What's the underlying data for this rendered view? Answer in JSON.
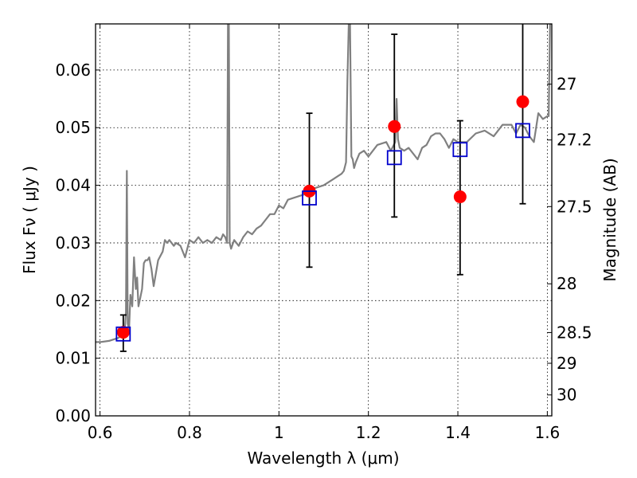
{
  "chart_data": {
    "type": "scatter",
    "xlabel": "Wavelength  λ (μm)",
    "ylabel": "Flux  Fν  ( μJy )",
    "y2label": "Magnitude (AB)",
    "xlim": [
      0.59,
      1.61
    ],
    "ylim": [
      0.0,
      0.068
    ],
    "grid": true,
    "x_ticks": [
      0.6,
      0.8,
      1.0,
      1.2,
      1.4,
      1.6
    ],
    "x_tick_labels": [
      "0.6",
      "0.8",
      "1",
      "1.2",
      "1.4",
      "1.6"
    ],
    "y_ticks": [
      0.0,
      0.01,
      0.02,
      0.03,
      0.04,
      0.05,
      0.06
    ],
    "y_tick_labels": [
      "0.00",
      "0.01",
      "0.02",
      "0.03",
      "0.04",
      "0.05",
      "0.06"
    ],
    "y2_ticks": [
      27,
      27.2,
      27.5,
      28,
      28.5,
      29,
      30
    ],
    "y2_tick_labels": [
      "27",
      "27.2",
      "27.5",
      "28",
      "28.5",
      "29",
      "30"
    ],
    "series": [
      {
        "kind": "line",
        "color": "#808080",
        "x": [
          0.59,
          0.6,
          0.62,
          0.64,
          0.65,
          0.655,
          0.658,
          0.66,
          0.662,
          0.665,
          0.668,
          0.672,
          0.676,
          0.68,
          0.683,
          0.686,
          0.69,
          0.694,
          0.698,
          0.702,
          0.706,
          0.71,
          0.715,
          0.72,
          0.73,
          0.74,
          0.745,
          0.75,
          0.755,
          0.76,
          0.765,
          0.77,
          0.78,
          0.79,
          0.8,
          0.81,
          0.82,
          0.83,
          0.84,
          0.85,
          0.86,
          0.87,
          0.875,
          0.88,
          0.884,
          0.886,
          0.888,
          0.89,
          0.893,
          0.9,
          0.91,
          0.92,
          0.93,
          0.94,
          0.95,
          0.96,
          0.97,
          0.98,
          0.99,
          1.0,
          1.01,
          1.02,
          1.04,
          1.06,
          1.08,
          1.1,
          1.12,
          1.13,
          1.14,
          1.145,
          1.15,
          1.153,
          1.156,
          1.159,
          1.162,
          1.165,
          1.168,
          1.172,
          1.18,
          1.19,
          1.2,
          1.21,
          1.22,
          1.24,
          1.25,
          1.26,
          1.263,
          1.266,
          1.27,
          1.28,
          1.29,
          1.3,
          1.31,
          1.32,
          1.33,
          1.34,
          1.35,
          1.36,
          1.37,
          1.38,
          1.39,
          1.4,
          1.42,
          1.44,
          1.46,
          1.48,
          1.5,
          1.52,
          1.53,
          1.54,
          1.55,
          1.56,
          1.57,
          1.58,
          1.59,
          1.6,
          1.603,
          1.606,
          1.61
        ],
        "y": [
          0.0128,
          0.0128,
          0.013,
          0.0135,
          0.014,
          0.0145,
          0.018,
          0.0425,
          0.016,
          0.015,
          0.021,
          0.019,
          0.0275,
          0.022,
          0.024,
          0.019,
          0.0205,
          0.022,
          0.0265,
          0.027,
          0.027,
          0.0275,
          0.0255,
          0.0225,
          0.027,
          0.0285,
          0.0305,
          0.03,
          0.0305,
          0.03,
          0.0295,
          0.03,
          0.0295,
          0.0275,
          0.0305,
          0.03,
          0.031,
          0.03,
          0.0305,
          0.03,
          0.031,
          0.0305,
          0.0315,
          0.031,
          0.03,
          0.068,
          0.068,
          0.03,
          0.029,
          0.0305,
          0.0295,
          0.031,
          0.032,
          0.0315,
          0.0325,
          0.033,
          0.034,
          0.035,
          0.035,
          0.0365,
          0.036,
          0.0375,
          0.038,
          0.0385,
          0.0395,
          0.04,
          0.041,
          0.0415,
          0.042,
          0.0425,
          0.044,
          0.058,
          0.068,
          0.068,
          0.045,
          0.0445,
          0.043,
          0.044,
          0.0455,
          0.046,
          0.045,
          0.046,
          0.047,
          0.0475,
          0.046,
          0.0475,
          0.055,
          0.048,
          0.0465,
          0.046,
          0.0465,
          0.0455,
          0.0445,
          0.0465,
          0.047,
          0.0485,
          0.049,
          0.049,
          0.048,
          0.0465,
          0.048,
          0.0475,
          0.0475,
          0.049,
          0.0495,
          0.0485,
          0.0505,
          0.0505,
          0.049,
          0.0505,
          0.05,
          0.0485,
          0.0475,
          0.0525,
          0.0515,
          0.052,
          0.052,
          0.068,
          0.068
        ]
      },
      {
        "kind": "points",
        "marker": "circle",
        "color": "#ff0000",
        "x": [
          0.652,
          1.068,
          1.258,
          1.405,
          1.545
        ],
        "y": [
          0.0145,
          0.039,
          0.0502,
          0.038,
          0.0545
        ]
      },
      {
        "kind": "points",
        "marker": "square",
        "color": "#0000cc",
        "x": [
          0.652,
          1.068,
          1.258,
          1.405,
          1.545
        ],
        "y": [
          0.0142,
          0.0378,
          0.0448,
          0.0462,
          0.0495
        ]
      },
      {
        "kind": "errorbars",
        "color": "#000000",
        "x": [
          0.652,
          1.068,
          1.258,
          1.405,
          1.545
        ],
        "y_low": [
          0.0112,
          0.0258,
          0.0345,
          0.0245,
          0.0368
        ],
        "y_high": [
          0.0175,
          0.0525,
          0.0662,
          0.0512,
          0.068
        ]
      }
    ]
  }
}
